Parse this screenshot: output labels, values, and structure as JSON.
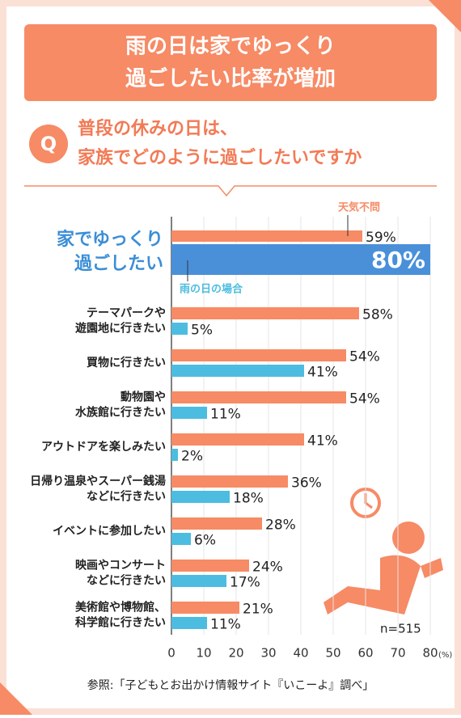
{
  "chart_data": {
    "type": "bar",
    "orientation": "horizontal",
    "title": [
      "雨の日は家でゆっくり",
      "過ごしたい比率が増加"
    ],
    "question_mark": "Q",
    "subtitle": [
      "普段の休みの日は、",
      "家族でどのように過ごしたいですか"
    ],
    "categories": [
      [
        "家でゆっくり",
        "過ごしたい"
      ],
      [
        "テーマパークや",
        "遊園地に行きたい"
      ],
      [
        "買物に行きたい"
      ],
      [
        "動物園や",
        "水族館に行きたい"
      ],
      [
        "アウトドアを楽しみたい"
      ],
      [
        "日帰り温泉やスーパー銭湯",
        "などに行きたい"
      ],
      [
        "イベントに参加したい"
      ],
      [
        "映画やコンサート",
        "などに行きたい"
      ],
      [
        "美術館や博物館、",
        "科学館に行きたい"
      ]
    ],
    "series": [
      {
        "name": "天気不問",
        "color": "#f68b65",
        "values": [
          59,
          58,
          54,
          54,
          41,
          36,
          28,
          24,
          21
        ],
        "value_labels": [
          "59%",
          "58%",
          "54%",
          "54%",
          "41%",
          "36%",
          "28%",
          "24%",
          "21%"
        ]
      },
      {
        "name": "雨の日の場合",
        "color": "#4cbde0",
        "highlight_color": "#4a90d9",
        "values": [
          80,
          5,
          41,
          11,
          2,
          18,
          6,
          17,
          11
        ],
        "value_labels": [
          "80%",
          "5%",
          "41%",
          "11%",
          "2%",
          "18%",
          "6%",
          "17%",
          "11%"
        ]
      }
    ],
    "xlim": [
      0,
      80
    ],
    "xticks": [
      0,
      10,
      20,
      30,
      40,
      50,
      60,
      70,
      80
    ],
    "xlabel": "(%)",
    "grid": true,
    "note": "n=515",
    "source": "参照:「子どもとお出かけ情報サイト『いこーよ』調べ」"
  }
}
